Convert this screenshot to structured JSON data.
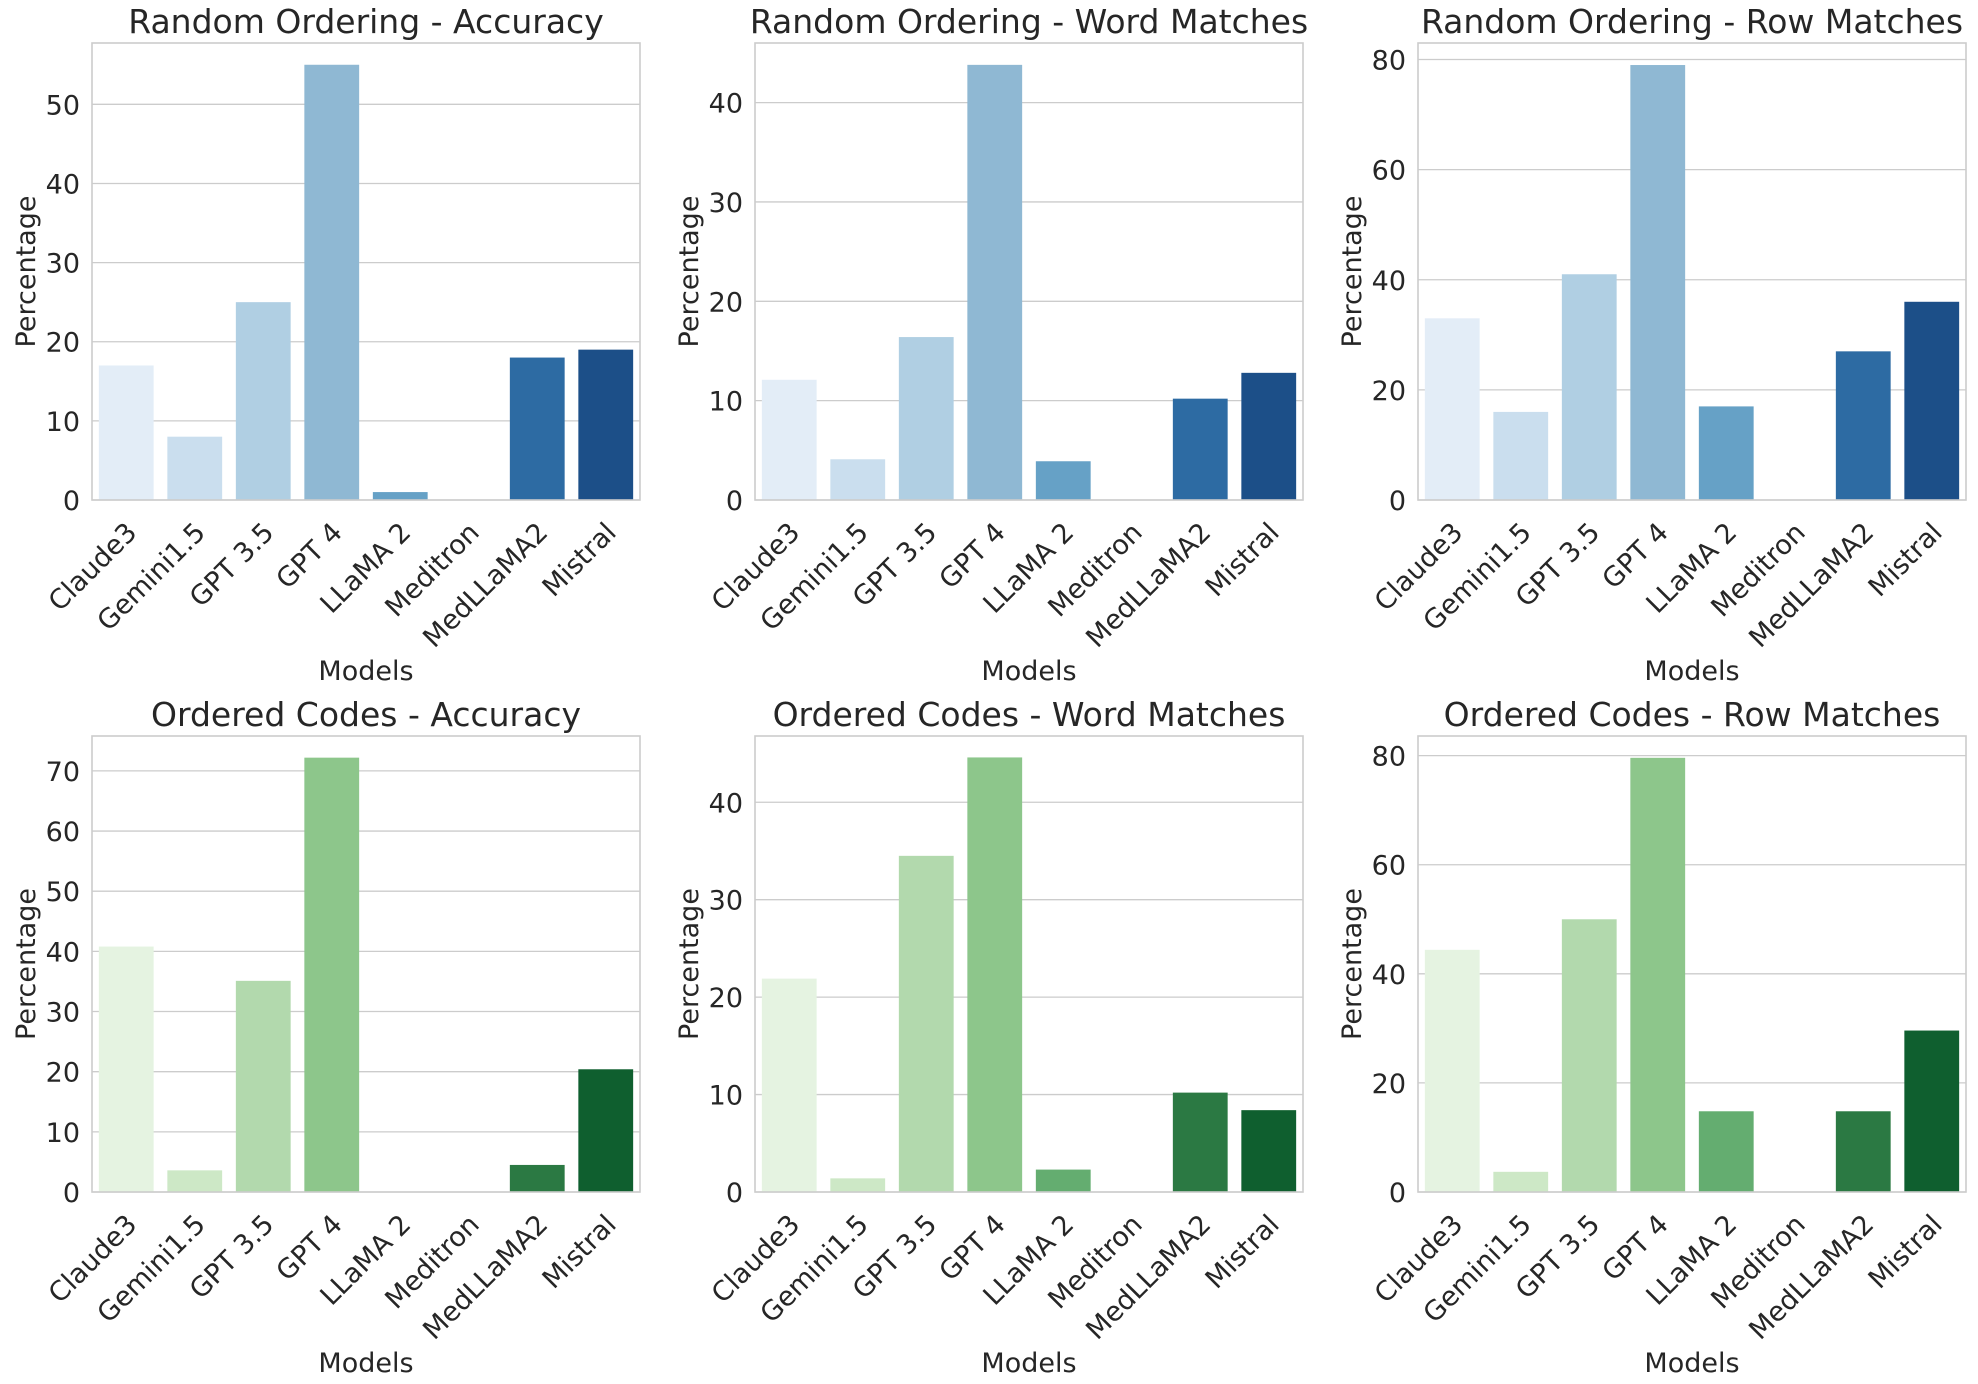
{
  "figure": {
    "xlabel": "Models",
    "ylabel": "Percentage",
    "categories": [
      "Claude3",
      "Gemini1.5",
      "GPT 3.5",
      "GPT 4",
      "LLaMA 2",
      "Meditron",
      "MedLLaMA2",
      "Mistral"
    ]
  },
  "palettes": {
    "blues": [
      "#e3edf7",
      "#cadeee",
      "#b0cfe3",
      "#8fb8d3",
      "#66a1c6",
      "#3f85b9",
      "#2d6ba3",
      "#1c4f88"
    ],
    "greens": [
      "#e5f3e1",
      "#cde8c6",
      "#b2d9ad",
      "#8dc68b",
      "#64ad70",
      "#3d9256",
      "#2b7943",
      "#0f5f2f"
    ]
  },
  "chart_data": [
    {
      "type": "bar",
      "title": "Random Ordering - Accuracy",
      "palette": "blues",
      "categories": [
        "Claude3",
        "Gemini1.5",
        "GPT 3.5",
        "GPT 4",
        "LLaMA 2",
        "Meditron",
        "MedLLaMA2",
        "Mistral"
      ],
      "values": [
        17,
        8,
        25,
        55,
        1,
        0,
        18,
        19
      ],
      "xlabel": "Models",
      "ylabel": "Percentage",
      "ylim": [
        0,
        57.75
      ],
      "yticks": [
        0,
        10,
        20,
        30,
        40,
        50
      ],
      "grid": true
    },
    {
      "type": "bar",
      "title": "Random Ordering - Word Matches",
      "palette": "blues",
      "categories": [
        "Claude3",
        "Gemini1.5",
        "GPT 3.5",
        "GPT 4",
        "LLaMA 2",
        "Meditron",
        "MedLLaMA2",
        "Mistral"
      ],
      "values": [
        12.1,
        4.1,
        16.4,
        43.8,
        3.9,
        0,
        10.2,
        12.8
      ],
      "xlabel": "Models",
      "ylabel": "Percentage",
      "ylim": [
        0,
        46
      ],
      "yticks": [
        0,
        10,
        20,
        30,
        40
      ],
      "grid": true
    },
    {
      "type": "bar",
      "title": "Random Ordering - Row Matches",
      "palette": "blues",
      "categories": [
        "Claude3",
        "Gemini1.5",
        "GPT 3.5",
        "GPT 4",
        "LLaMA 2",
        "Meditron",
        "MedLLaMA2",
        "Mistral"
      ],
      "values": [
        33,
        16,
        41,
        79,
        17,
        0,
        27,
        36
      ],
      "xlabel": "Models",
      "ylabel": "Percentage",
      "ylim": [
        0,
        83
      ],
      "yticks": [
        0,
        20,
        40,
        60,
        80
      ],
      "grid": true
    },
    {
      "type": "bar",
      "title": "Ordered Codes - Accuracy",
      "palette": "greens",
      "categories": [
        "Claude3",
        "Gemini1.5",
        "GPT 3.5",
        "GPT 4",
        "LLaMA 2",
        "Meditron",
        "MedLLaMA2",
        "Mistral"
      ],
      "values": [
        40.8,
        3.6,
        35.1,
        72.2,
        0,
        0,
        4.5,
        20.4
      ],
      "xlabel": "Models",
      "ylabel": "Percentage",
      "ylim": [
        0,
        75.8
      ],
      "yticks": [
        0,
        10,
        20,
        30,
        40,
        50,
        60,
        70
      ],
      "grid": true
    },
    {
      "type": "bar",
      "title": "Ordered Codes - Word Matches",
      "palette": "greens",
      "categories": [
        "Claude3",
        "Gemini1.5",
        "GPT 3.5",
        "GPT 4",
        "LLaMA 2",
        "Meditron",
        "MedLLaMA2",
        "Mistral"
      ],
      "values": [
        21.9,
        1.4,
        34.5,
        44.6,
        2.3,
        0,
        10.2,
        8.4
      ],
      "xlabel": "Models",
      "ylabel": "Percentage",
      "ylim": [
        0,
        46.8
      ],
      "yticks": [
        0,
        10,
        20,
        30,
        40
      ],
      "grid": true
    },
    {
      "type": "bar",
      "title": "Ordered Codes - Row Matches",
      "palette": "greens",
      "categories": [
        "Claude3",
        "Gemini1.5",
        "GPT 3.5",
        "GPT 4",
        "LLaMA 2",
        "Meditron",
        "MedLLaMA2",
        "Mistral"
      ],
      "values": [
        44.4,
        3.7,
        50,
        79.6,
        14.8,
        0,
        14.8,
        29.6
      ],
      "xlabel": "Models",
      "ylabel": "Percentage",
      "ylim": [
        0,
        83.6
      ],
      "yticks": [
        0,
        20,
        40,
        60,
        80
      ],
      "grid": true
    }
  ]
}
